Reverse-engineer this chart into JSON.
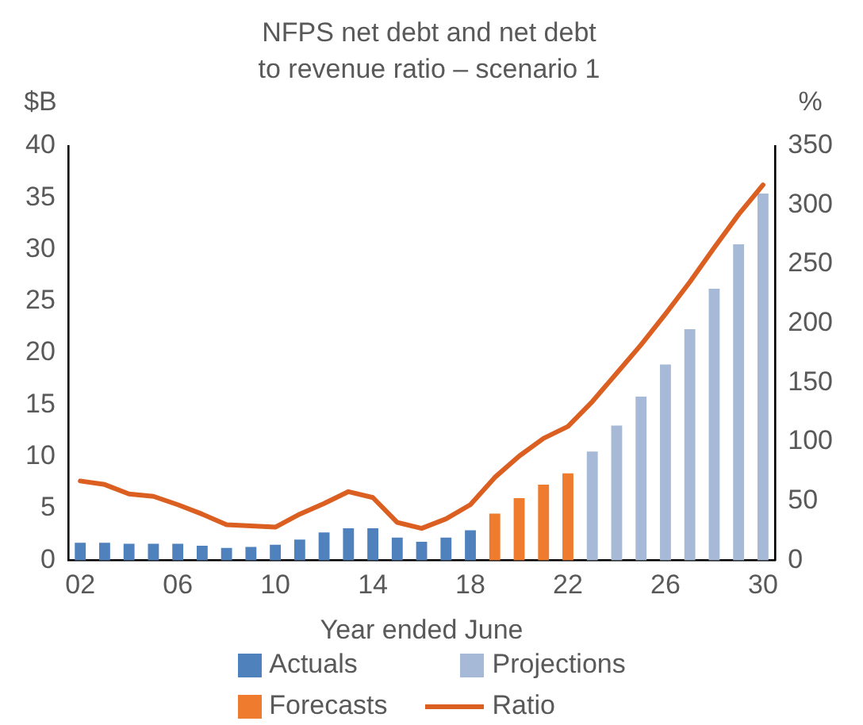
{
  "chart_data": {
    "type": "bar",
    "title": "NFPS net debt and net debt to revenue ratio – scenario 1",
    "xlabel": "Year ended June",
    "ylabel": "$B",
    "y2label": "%",
    "categories": [
      "02",
      null,
      null,
      null,
      "06",
      null,
      null,
      null,
      "10",
      null,
      null,
      null,
      "14",
      null,
      null,
      null,
      "18",
      null,
      null,
      null,
      "22",
      null,
      null,
      null,
      "26",
      null,
      null,
      null,
      "30"
    ],
    "series": [
      {
        "name": "Actuals",
        "color": "#4f81bd",
        "values": [
          1.7,
          1.7,
          1.6,
          1.6,
          1.6,
          1.4,
          1.2,
          1.3,
          1.5,
          2.0,
          2.7,
          3.1,
          3.1,
          2.2,
          1.8,
          2.2,
          2.9,
          null,
          null,
          null,
          null,
          null,
          null,
          null,
          null,
          null,
          null,
          null,
          null
        ]
      },
      {
        "name": "Projections",
        "color": "#a6bad8",
        "values": [
          null,
          null,
          null,
          null,
          null,
          null,
          null,
          null,
          null,
          null,
          null,
          null,
          null,
          null,
          null,
          null,
          null,
          null,
          null,
          null,
          null,
          10.5,
          13.0,
          15.8,
          18.9,
          22.3,
          26.2,
          30.5,
          35.4
        ]
      },
      {
        "name": "Forecasts",
        "color": "#ee7b2e",
        "values": [
          null,
          null,
          null,
          null,
          null,
          null,
          null,
          null,
          null,
          null,
          null,
          null,
          null,
          null,
          null,
          null,
          null,
          4.5,
          6.0,
          7.3,
          8.4,
          null,
          null,
          null,
          null,
          null,
          null,
          null,
          null
        ]
      },
      {
        "name": "Ratio",
        "type": "line",
        "axis": "y2",
        "color": "#dc5f22",
        "values": [
          67,
          64,
          56,
          54,
          47,
          39,
          30,
          29,
          28,
          39,
          48,
          58,
          53,
          32,
          27,
          35,
          47,
          70,
          88,
          103,
          113,
          134,
          158,
          182,
          208,
          235,
          264,
          292,
          317
        ]
      }
    ],
    "ylim": [
      0,
      40
    ],
    "yticks": [
      0,
      5,
      10,
      15,
      20,
      25,
      30,
      35,
      40
    ],
    "y2lim": [
      0,
      350
    ],
    "y2ticks": [
      0,
      50,
      100,
      150,
      200,
      250,
      300,
      350
    ],
    "legend": "bottom"
  }
}
